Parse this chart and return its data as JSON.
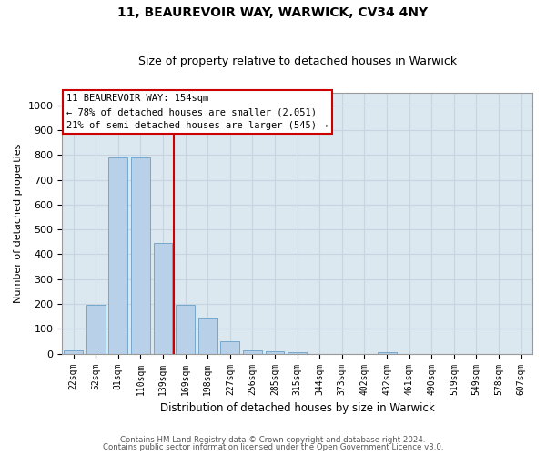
{
  "title1": "11, BEAUREVOIR WAY, WARWICK, CV34 4NY",
  "title2": "Size of property relative to detached houses in Warwick",
  "xlabel": "Distribution of detached houses by size in Warwick",
  "ylabel": "Number of detached properties",
  "categories": [
    "22sqm",
    "52sqm",
    "81sqm",
    "110sqm",
    "139sqm",
    "169sqm",
    "198sqm",
    "227sqm",
    "256sqm",
    "285sqm",
    "315sqm",
    "344sqm",
    "373sqm",
    "402sqm",
    "432sqm",
    "461sqm",
    "490sqm",
    "519sqm",
    "549sqm",
    "578sqm",
    "607sqm"
  ],
  "values": [
    15,
    195,
    790,
    790,
    445,
    195,
    145,
    50,
    15,
    10,
    8,
    0,
    0,
    0,
    8,
    0,
    0,
    0,
    0,
    0,
    0
  ],
  "bar_color": "#b8d0e8",
  "bar_edge_color": "#6a9fc8",
  "red_line_x": 4.5,
  "red_line_color": "#cc0000",
  "annotation_label": "11 BEAUREVOIR WAY: 154sqm",
  "annotation_line1": "← 78% of detached houses are smaller (2,051)",
  "annotation_line2": "21% of semi-detached houses are larger (545) →",
  "annotation_box_color": "#ffffff",
  "annotation_box_edge": "#cc0000",
  "grid_color": "#c8d4e0",
  "bg_color": "#dce8f0",
  "ylim": [
    0,
    1050
  ],
  "yticks": [
    0,
    100,
    200,
    300,
    400,
    500,
    600,
    700,
    800,
    900,
    1000
  ],
  "footer1": "Contains HM Land Registry data © Crown copyright and database right 2024.",
  "footer2": "Contains public sector information licensed under the Open Government Licence v3.0."
}
